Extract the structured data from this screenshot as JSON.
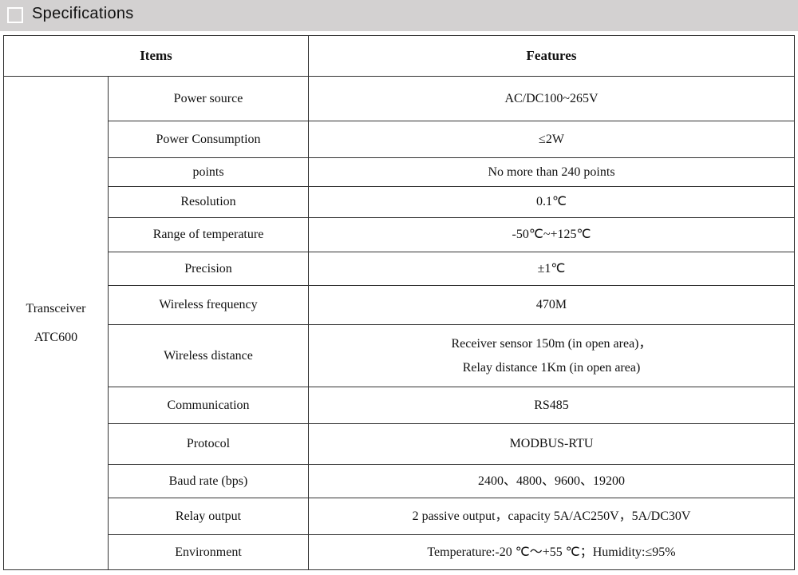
{
  "section": {
    "title": "Specifications"
  },
  "table": {
    "headers": {
      "items": "Items",
      "features": "Features"
    },
    "group": [
      "Transceiver",
      "ATC600"
    ],
    "rows": [
      {
        "item": "Power source",
        "feature": [
          "AC/DC100~265V"
        ]
      },
      {
        "item": "Power Consumption",
        "feature": [
          "≤2W"
        ]
      },
      {
        "item": "points",
        "feature": [
          "No more than 240 points"
        ]
      },
      {
        "item": "Resolution",
        "feature": [
          "0.1℃"
        ]
      },
      {
        "item": "Range of temperature",
        "feature": [
          "-50℃~+125℃"
        ]
      },
      {
        "item": "Precision",
        "feature": [
          "±1℃"
        ]
      },
      {
        "item": "Wireless frequency",
        "feature": [
          "470M"
        ]
      },
      {
        "item": "Wireless distance",
        "feature": [
          "Receiver sensor 150m (in open area)，",
          "Relay distance 1Km (in open area)"
        ]
      },
      {
        "item": "Communication",
        "feature": [
          "RS485"
        ]
      },
      {
        "item": "Protocol",
        "feature": [
          "MODBUS-RTU"
        ]
      },
      {
        "item": "Baud rate (bps)",
        "feature": [
          "2400、4800、9600、19200"
        ]
      },
      {
        "item": "Relay output",
        "feature": [
          "2 passive output，capacity 5A/AC250V，5A/DC30V"
        ]
      },
      {
        "item": "Environment",
        "feature": [
          "Temperature:-20 ℃～+55 ℃；Humidity:≤95%"
        ]
      }
    ]
  }
}
